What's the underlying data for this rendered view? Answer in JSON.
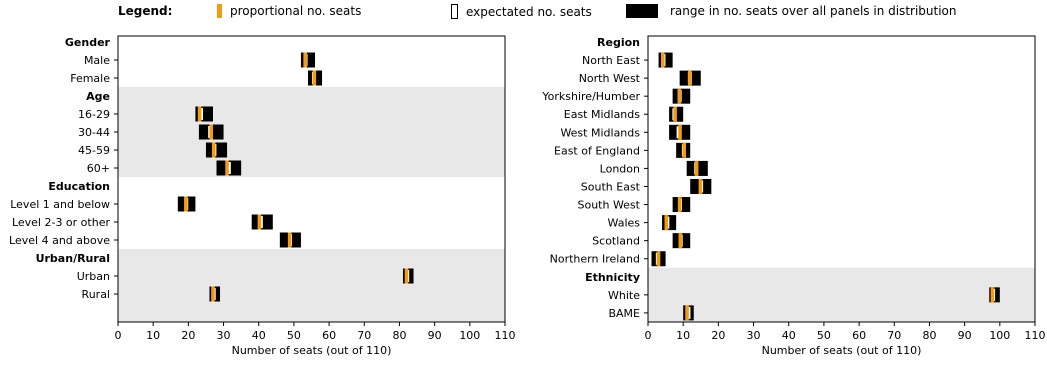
{
  "legend": {
    "title": "Legend:",
    "proportional": "proportional no. seats",
    "expected": "expectated no. seats",
    "range": "range in no. seats over all panels in distribution"
  },
  "colors": {
    "proportional": "#f39c12",
    "range": "#000000",
    "shade": "#e8e8e8"
  },
  "chart_data": [
    {
      "type": "range",
      "xlabel": "Number of seats (out of 110)",
      "xlim": [
        0,
        110
      ],
      "xticks": [
        0,
        10,
        20,
        30,
        40,
        50,
        60,
        70,
        80,
        90,
        100,
        110
      ],
      "groups": [
        {
          "name": "Gender",
          "shaded": false,
          "items": [
            {
              "label": "Male",
              "min": 52,
              "max": 56,
              "proportional": 53.2,
              "expected": 53.3
            },
            {
              "label": "Female",
              "min": 54,
              "max": 58,
              "proportional": 55.8,
              "expected": 55.7
            }
          ]
        },
        {
          "name": "Age",
          "shaded": true,
          "items": [
            {
              "label": "16-29",
              "min": 22,
              "max": 27,
              "proportional": 23.2,
              "expected": 23.6
            },
            {
              "label": "30-44",
              "min": 23,
              "max": 30,
              "proportional": 26.5,
              "expected": 26.2
            },
            {
              "label": "45-59",
              "min": 25,
              "max": 31,
              "proportional": 27.2,
              "expected": 27.4
            },
            {
              "label": "60+",
              "min": 28,
              "max": 35,
              "proportional": 31.0,
              "expected": 31.5
            }
          ]
        },
        {
          "name": "Education",
          "shaded": false,
          "items": [
            {
              "label": "Level 1 and below",
              "min": 17,
              "max": 22,
              "proportional": 19.3,
              "expected": 19.4
            },
            {
              "label": "Level 2-3 or other",
              "min": 38,
              "max": 44,
              "proportional": 40.2,
              "expected": 40.6
            },
            {
              "label": "Level 4 and above",
              "min": 46,
              "max": 52,
              "proportional": 48.8,
              "expected": 48.9
            }
          ]
        },
        {
          "name": "Urban/Rural",
          "shaded": true,
          "items": [
            {
              "label": "Urban",
              "min": 81,
              "max": 84,
              "proportional": 82.0,
              "expected": 82.2
            },
            {
              "label": "Rural",
              "min": 26,
              "max": 29,
              "proportional": 27.0,
              "expected": 27.2
            }
          ]
        }
      ]
    },
    {
      "type": "range",
      "xlabel": "Number of seats (out of 110)",
      "xlim": [
        0,
        110
      ],
      "xticks": [
        0,
        10,
        20,
        30,
        40,
        50,
        60,
        70,
        80,
        90,
        100,
        110
      ],
      "groups": [
        {
          "name": "Region",
          "shaded": false,
          "items": [
            {
              "label": "North East",
              "min": 3,
              "max": 7,
              "proportional": 4.2,
              "expected": 4.4
            },
            {
              "label": "North West",
              "min": 9,
              "max": 15,
              "proportional": 11.9,
              "expected": 11.9
            },
            {
              "label": "Yorkshire/Humber",
              "min": 7,
              "max": 12,
              "proportional": 8.9,
              "expected": 9.0
            },
            {
              "label": "East Midlands",
              "min": 6,
              "max": 10,
              "proportional": 7.7,
              "expected": 7.5
            },
            {
              "label": "West Midlands",
              "min": 6,
              "max": 12,
              "proportional": 9.1,
              "expected": 8.7
            },
            {
              "label": "East of England",
              "min": 8,
              "max": 12,
              "proportional": 10.3,
              "expected": 10.2
            },
            {
              "label": "London",
              "min": 11,
              "max": 17,
              "proportional": 13.8,
              "expected": 13.7
            },
            {
              "label": "South East",
              "min": 12,
              "max": 18,
              "proportional": 14.9,
              "expected": 15.1
            },
            {
              "label": "South West",
              "min": 7,
              "max": 12,
              "proportional": 9.0,
              "expected": 9.1
            },
            {
              "label": "Wales",
              "min": 4,
              "max": 8,
              "proportional": 5.2,
              "expected": 5.5
            },
            {
              "label": "Scotland",
              "min": 7,
              "max": 12,
              "proportional": 9.2,
              "expected": 9.3
            },
            {
              "label": "Northern Ireland",
              "min": 1,
              "max": 5,
              "proportional": 3.0,
              "expected": 2.8
            }
          ]
        },
        {
          "name": "Ethnicity",
          "shaded": true,
          "items": [
            {
              "label": "White",
              "min": 97,
              "max": 100,
              "proportional": 97.9,
              "expected": 98.1
            },
            {
              "label": "BAME",
              "min": 10,
              "max": 13,
              "proportional": 11.1,
              "expected": 11.5
            }
          ]
        }
      ]
    }
  ]
}
